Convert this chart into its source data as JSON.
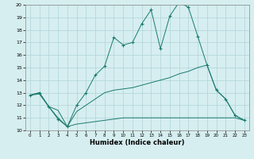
{
  "xlabel": "Humidex (Indice chaleur)",
  "bg_color": "#d6eef0",
  "grid_color": "#b0d4d8",
  "line_color": "#1a7a6e",
  "xlim": [
    -0.5,
    23.5
  ],
  "ylim": [
    10,
    20
  ],
  "xticks": [
    0,
    1,
    2,
    3,
    4,
    5,
    6,
    7,
    8,
    9,
    10,
    11,
    12,
    13,
    14,
    15,
    16,
    17,
    18,
    19,
    20,
    21,
    22,
    23
  ],
  "yticks": [
    10,
    11,
    12,
    13,
    14,
    15,
    16,
    17,
    18,
    19,
    20
  ],
  "series": [
    {
      "x": [
        0,
        1,
        2,
        3,
        4,
        5,
        6,
        7,
        8,
        9,
        10,
        11,
        12,
        13,
        14,
        15,
        16,
        17,
        18,
        19,
        20,
        21,
        22,
        23
      ],
      "y": [
        12.8,
        13.0,
        11.9,
        10.9,
        10.3,
        12.0,
        13.0,
        14.4,
        15.1,
        17.4,
        16.8,
        17.0,
        18.5,
        19.6,
        16.5,
        19.1,
        20.2,
        19.8,
        17.5,
        15.2,
        13.2,
        12.5,
        11.2,
        10.8
      ],
      "marker": "+"
    },
    {
      "x": [
        0,
        1,
        2,
        3,
        4,
        5,
        6,
        7,
        8,
        9,
        10,
        11,
        12,
        13,
        14,
        15,
        16,
        17,
        18,
        19,
        20,
        21,
        22,
        23
      ],
      "y": [
        12.8,
        13.0,
        11.9,
        11.6,
        10.3,
        11.5,
        12.0,
        12.5,
        13.0,
        13.2,
        13.3,
        13.4,
        13.6,
        13.8,
        14.0,
        14.2,
        14.5,
        14.7,
        15.0,
        15.2,
        13.2,
        12.5,
        11.2,
        10.8
      ],
      "marker": null
    },
    {
      "x": [
        0,
        1,
        2,
        3,
        4,
        5,
        6,
        7,
        8,
        9,
        10,
        11,
        12,
        13,
        14,
        15,
        16,
        17,
        18,
        19,
        20,
        21,
        22,
        23
      ],
      "y": [
        12.8,
        12.9,
        11.9,
        11.0,
        10.3,
        10.5,
        10.6,
        10.7,
        10.8,
        10.9,
        11.0,
        11.0,
        11.0,
        11.0,
        11.0,
        11.0,
        11.0,
        11.0,
        11.0,
        11.0,
        11.0,
        11.0,
        11.0,
        10.8
      ],
      "marker": null
    }
  ]
}
